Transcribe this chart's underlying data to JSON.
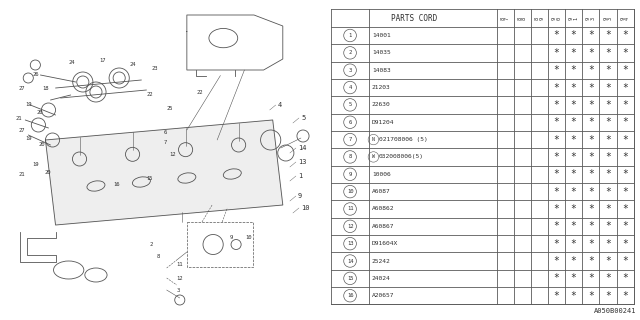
{
  "diagram_code": "A050B00241",
  "col_headers": [
    "8\n7",
    "8\n8",
    "8\n9",
    "9\n0",
    "9\n1",
    "9\n3",
    "9\n3",
    "9\n4"
  ],
  "parts": [
    {
      "num": "1",
      "code": "14001"
    },
    {
      "num": "2",
      "code": "14035"
    },
    {
      "num": "3",
      "code": "14083"
    },
    {
      "num": "4",
      "code": "21203"
    },
    {
      "num": "5",
      "code": "22630"
    },
    {
      "num": "6",
      "code": "D91204"
    },
    {
      "num": "7",
      "code": "N021708006 (5)",
      "prefix": "N"
    },
    {
      "num": "8",
      "code": "W032008006(5)",
      "prefix": "W"
    },
    {
      "num": "9",
      "code": "10006"
    },
    {
      "num": "10",
      "code": "A6087"
    },
    {
      "num": "11",
      "code": "A60862"
    },
    {
      "num": "12",
      "code": "A60867"
    },
    {
      "num": "13",
      "code": "D91604X"
    },
    {
      "num": "14",
      "code": "25242"
    },
    {
      "num": "15",
      "code": "24024"
    },
    {
      "num": "16",
      "code": "A20657"
    }
  ],
  "star_cols": [
    3,
    4,
    5,
    6,
    7
  ],
  "bg_color": "#ffffff",
  "line_color": "#5a5a5a",
  "text_color": "#303030",
  "draw_line_color": "#555555"
}
